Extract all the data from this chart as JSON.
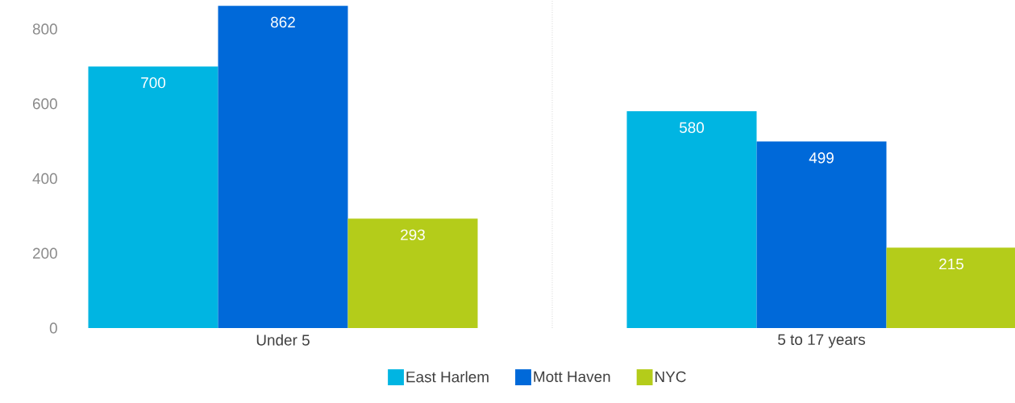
{
  "chart_data": {
    "type": "bar",
    "categories": [
      "Under 5",
      "5 to 17 years"
    ],
    "series": [
      {
        "name": "East Harlem",
        "color": "#00b5e2",
        "values": [
          700,
          580
        ],
        "value_labels": [
          "700",
          "580"
        ]
      },
      {
        "name": "Mott Haven",
        "color": "#0069d9",
        "values": [
          862,
          499
        ],
        "value_labels": [
          "862",
          "499"
        ]
      },
      {
        "name": "NYC",
        "color": "#b4cc1a",
        "values": [
          293,
          215
        ],
        "value_labels": [
          "293",
          "215"
        ]
      }
    ],
    "ylim": [
      0,
      880
    ],
    "yticks": [
      0,
      200,
      400,
      600,
      800
    ],
    "grid": false,
    "legend": "bottom"
  }
}
